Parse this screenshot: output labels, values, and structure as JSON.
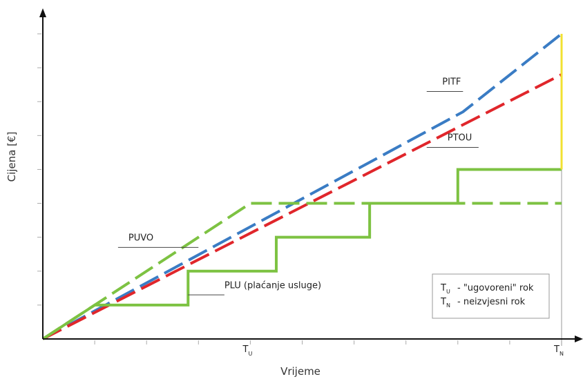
{
  "chart_data": {
    "type": "line",
    "xlabel": "Vrijeme",
    "ylabel": "Cijena [€]",
    "x_ticks": [
      {
        "x": 4.0,
        "label": "T",
        "sub": "U"
      },
      {
        "x": 10.0,
        "label": "T",
        "sub": "N"
      }
    ],
    "xlim": [
      0,
      10.5
    ],
    "ylim": [
      0,
      9.2
    ],
    "series": [
      {
        "name": "PITF",
        "color": "#3a7cc4",
        "dash": true,
        "points": [
          [
            0,
            0
          ],
          [
            8.1,
            6.7
          ],
          [
            10,
            9.0
          ]
        ],
        "label_at": [
          7.7,
          7.5
        ],
        "leader": [
          [
            7.4,
            7.3
          ],
          [
            8.1,
            7.3
          ]
        ]
      },
      {
        "name": "PTOU",
        "color": "#e0262b",
        "dash": true,
        "points": [
          [
            0,
            0
          ],
          [
            10,
            7.8
          ]
        ],
        "label_at": [
          7.8,
          5.85
        ],
        "leader": [
          [
            7.4,
            5.65
          ],
          [
            8.4,
            5.65
          ]
        ]
      },
      {
        "name": "PUVO",
        "color": "#7dc242",
        "dash": true,
        "points": [
          [
            0,
            0
          ],
          [
            4,
            4
          ],
          [
            10,
            4
          ]
        ],
        "label_at": [
          1.65,
          2.9
        ],
        "leader": [
          [
            1.45,
            2.7
          ],
          [
            3.0,
            2.7
          ]
        ]
      },
      {
        "name": "PLU (plaćanje usluge)",
        "color": "#7dc242",
        "dash": false,
        "points": [
          [
            0,
            0
          ],
          [
            1,
            1
          ],
          [
            2.8,
            1
          ],
          [
            2.8,
            2
          ],
          [
            4.5,
            2
          ],
          [
            4.5,
            3
          ],
          [
            6.3,
            3
          ],
          [
            6.3,
            4
          ],
          [
            8,
            4
          ],
          [
            8,
            5
          ],
          [
            10,
            5
          ]
        ],
        "label_at": [
          3.5,
          1.5
        ],
        "leader": [
          [
            2.8,
            1.3
          ],
          [
            3.5,
            1.3
          ]
        ]
      }
    ],
    "nonpayment_segment": {
      "color": "#f2e130",
      "from": [
        10,
        5
      ],
      "to": [
        10,
        9.0
      ]
    },
    "legend": [
      {
        "sym": "T",
        "sub": "U",
        "text": "- \"ugovoreni\" rok"
      },
      {
        "sym": "T",
        "sub": "N",
        "text": "- neizvjesni rok"
      }
    ],
    "legend_position": "bottom-right",
    "grid": false
  }
}
